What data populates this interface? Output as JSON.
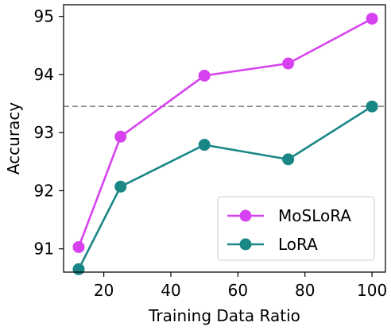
{
  "chart_data": {
    "type": "line",
    "xlabel": "Training Data Ratio",
    "ylabel": "Accuracy",
    "xlim": [
      8,
      104
    ],
    "ylim": [
      90.6,
      95.2
    ],
    "xticks": [
      20,
      40,
      60,
      80,
      100
    ],
    "yticks": [
      91,
      92,
      93,
      94,
      95
    ],
    "grid": false,
    "legend_position": "lower-right",
    "reference_line": {
      "axis": "y",
      "value": 93.45,
      "style": "dashed",
      "color": "#808080"
    },
    "series": [
      {
        "name": "MoSLoRA",
        "color": "#d742f0",
        "marker": "circle",
        "x": [
          12.5,
          25,
          50,
          75,
          100
        ],
        "y": [
          91.03,
          92.93,
          93.98,
          94.19,
          94.96
        ]
      },
      {
        "name": "LoRA",
        "color": "#1a8686",
        "marker": "circle",
        "x": [
          12.5,
          25,
          50,
          75,
          100
        ],
        "y": [
          90.65,
          92.07,
          92.79,
          92.54,
          93.45
        ]
      }
    ]
  }
}
